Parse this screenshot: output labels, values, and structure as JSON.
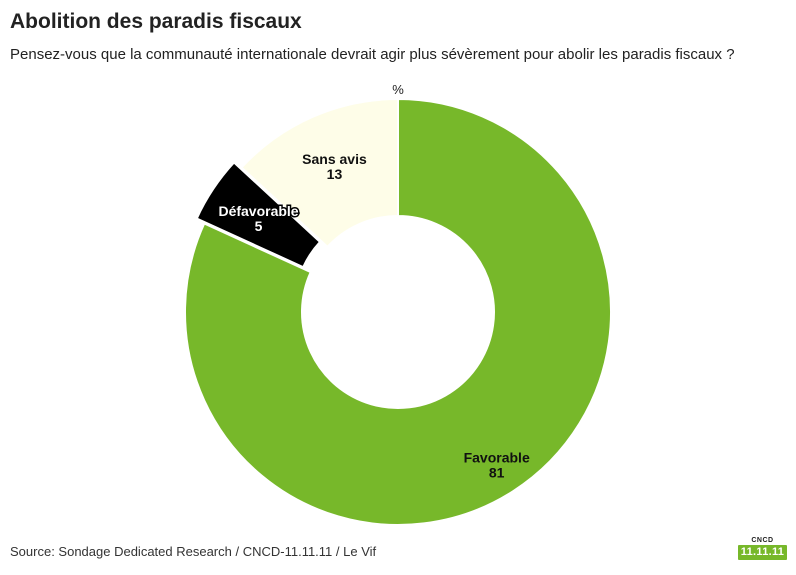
{
  "chart_data": {
    "type": "donut",
    "title": "Abolition des paradis fiscaux",
    "subtitle": "Pensez-vous que la communauté internationale devrait agir plus sévèrement pour abolir les paradis fiscaux ?",
    "unit_label": "%",
    "slices": [
      {
        "name": "Favorable",
        "value": 81,
        "color": "#77b82a"
      },
      {
        "name": "Défavorable",
        "value": 5,
        "color": "#000000"
      },
      {
        "name": "Sans avis",
        "value": 13,
        "color": "#fefde8"
      }
    ],
    "source": "Source: Sondage Dedicated Research / CNCD-11.11.11 / Le Vif"
  },
  "logo": {
    "top_text": "CNCD",
    "box_text": "11.11.11",
    "color": "#77b82a"
  }
}
